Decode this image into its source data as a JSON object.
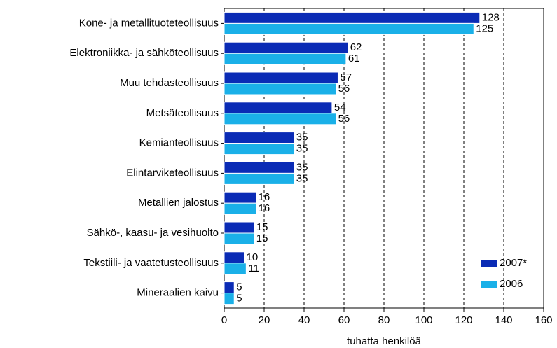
{
  "chart_data": {
    "type": "hbar",
    "categories": [
      "Kone- ja metallituoteteollisuus",
      "Elektroniikka- ja sähköteollisuus",
      "Muu tehdasteollisuus",
      "Metsäteollisuus",
      "Kemianteollisuus",
      "Elintarviketeollisuus",
      "Metallien jalostus",
      "Sähkö-, kaasu- ja vesihuolto",
      "Tekstiili- ja vaatetusteollisuus",
      "Mineraalien kaivu"
    ],
    "series": [
      {
        "name": "2007*",
        "color": "#0a2bb5",
        "values": [
          128,
          62,
          57,
          54,
          35,
          35,
          16,
          15,
          10,
          5
        ]
      },
      {
        "name": "2006",
        "color": "#1ab0e8",
        "values": [
          125,
          61,
          56,
          56,
          35,
          35,
          16,
          15,
          11,
          5
        ]
      }
    ],
    "xlabel": "tuhatta henkilöä",
    "xlim": [
      0,
      160
    ],
    "xticks": [
      0,
      20,
      40,
      60,
      80,
      100,
      120,
      140,
      160
    ],
    "grid": true,
    "legend": "lower right"
  }
}
